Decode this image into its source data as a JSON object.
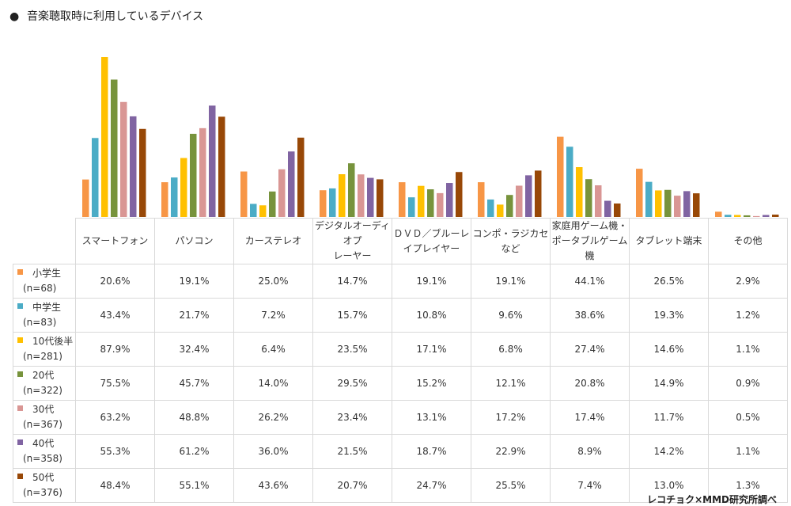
{
  "chart_data": {
    "type": "bar",
    "title": "音楽聴取時に利用しているデバイス",
    "categories": [
      "スマートフォン",
      "パソコン",
      "カーステレオ",
      "デジタルオーディオプレーヤー",
      "ＤＶＤ／ブルーレイプレイヤー",
      "コンポ・ラジカセなど",
      "家庭用ゲーム機・ポータブルゲーム機",
      "タブレット端末",
      "その他"
    ],
    "category_lines": [
      [
        "スマートフォン"
      ],
      [
        "パソコン"
      ],
      [
        "カーステレオ"
      ],
      [
        "デジタルオーディオプ",
        "レーヤー"
      ],
      [
        "ＤＶＤ／ブルーレ",
        "イプレイヤー"
      ],
      [
        "コンポ・ラジカセなど"
      ],
      [
        "家庭用ゲーム機・",
        "ポータブルゲーム機"
      ],
      [
        "タブレット端末"
      ],
      [
        "その他"
      ]
    ],
    "unit": "%",
    "ylim": [
      0,
      100
    ],
    "grid": false,
    "legend": "table-left",
    "series": [
      {
        "name": "小学生",
        "n": "(n=68)",
        "color": "#F79646",
        "values": [
          20.6,
          19.1,
          25.0,
          14.7,
          19.1,
          19.1,
          44.1,
          26.5,
          2.9
        ]
      },
      {
        "name": "中学生",
        "n": "(n=83)",
        "color": "#4BACC6",
        "values": [
          43.4,
          21.7,
          7.2,
          15.7,
          10.8,
          9.6,
          38.6,
          19.3,
          1.2
        ]
      },
      {
        "name": "10代後半",
        "n": "(n=281)",
        "color": "#FFC000",
        "values": [
          87.9,
          32.4,
          6.4,
          23.5,
          17.1,
          6.8,
          27.4,
          14.6,
          1.1
        ]
      },
      {
        "name": "20代",
        "n": "(n=322)",
        "color": "#77933C",
        "values": [
          75.5,
          45.7,
          14.0,
          29.5,
          15.2,
          12.1,
          20.8,
          14.9,
          0.9
        ]
      },
      {
        "name": "30代",
        "n": "(n=367)",
        "color": "#D99694",
        "values": [
          63.2,
          48.8,
          26.2,
          23.4,
          13.1,
          17.2,
          17.4,
          11.7,
          0.5
        ]
      },
      {
        "name": "40代",
        "n": "(n=358)",
        "color": "#8064A2",
        "values": [
          55.3,
          61.2,
          36.0,
          21.5,
          18.7,
          22.9,
          8.9,
          14.2,
          1.1
        ]
      },
      {
        "name": "50代",
        "n": "(n=376)",
        "color": "#984807",
        "values": [
          48.4,
          55.1,
          43.6,
          20.7,
          24.7,
          25.5,
          7.4,
          13.0,
          1.3
        ]
      }
    ]
  },
  "bullet": "●",
  "source": "レコチョク×MMD研究所調べ"
}
